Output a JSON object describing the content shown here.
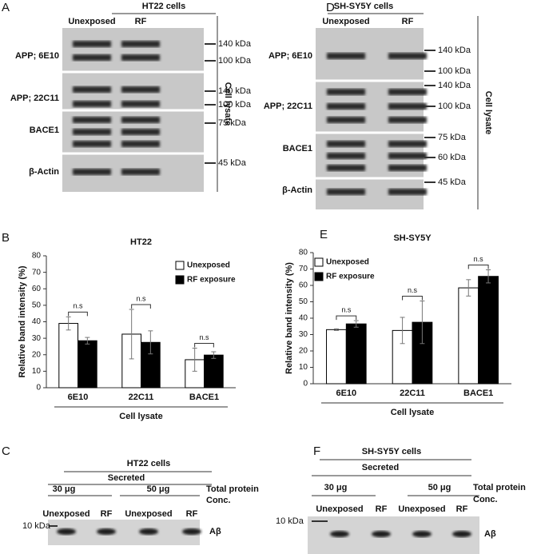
{
  "panel_labels": [
    "A",
    "B",
    "C",
    "D",
    "E",
    "F"
  ],
  "blots": [
    {
      "title": "HT22 cells",
      "lanes": [
        "Unexposed",
        "RF"
      ],
      "rows": [
        "APP; 6E10",
        "APP; 22C11",
        "BACE1",
        "β-Actin"
      ],
      "markers": [
        "140 kDa",
        "100 kDa",
        "140 kDa",
        "100 kDa",
        "75 kDa",
        "45 kDa"
      ],
      "side_label": "Cell lysate"
    },
    {
      "title": "SH-SY5Y cells",
      "lanes": [
        "Unexposed",
        "RF"
      ],
      "rows": [
        "APP; 6E10",
        "APP; 22C11",
        "BACE1",
        "β-Actin"
      ],
      "markers": [
        "140 kDa",
        "100 kDa",
        "140 kDa",
        "100 kDa",
        "75 kDa",
        "60 kDa",
        "45 kDa"
      ],
      "side_label": "Cell lysate"
    }
  ],
  "secreted": [
    {
      "title": "HT22 cells",
      "group": "Secreted",
      "amounts": [
        "30 μg",
        "50 μg"
      ],
      "conc_label": [
        "Total protein",
        "Conc."
      ],
      "lanes": [
        "Unexposed",
        "RF",
        "Unexposed",
        "RF"
      ],
      "marker": "10 kDa",
      "band": "Aβ"
    },
    {
      "title": "SH-SY5Y cells",
      "group": "Secreted",
      "amounts": [
        "30 μg",
        "50 μg"
      ],
      "conc_label": [
        "Total protein",
        "Conc."
      ],
      "lanes": [
        "Unexposed",
        "RF",
        "Unexposed",
        "RF"
      ],
      "marker": "10 kDa",
      "band": "Aβ"
    }
  ],
  "chart_data": [
    {
      "type": "bar",
      "title": "HT22",
      "y_label": "Relative band intensity (%)",
      "x_label": "Cell lysate",
      "categories": [
        "6E10",
        "22C11",
        "BACE1"
      ],
      "series": [
        {
          "name": "Unexposed",
          "color": "#ffffff",
          "values": [
            39,
            32.5,
            17
          ],
          "errors": [
            4,
            15,
            7
          ]
        },
        {
          "name": "RF exposure",
          "color": "#000000",
          "values": [
            28.5,
            27.5,
            19.8
          ],
          "errors": [
            2,
            7,
            2
          ]
        }
      ],
      "annotations": [
        "n.s",
        "n.s",
        "n.s"
      ],
      "ylim": [
        0,
        80
      ],
      "yticks": [
        0,
        10,
        20,
        30,
        40,
        50,
        60,
        70,
        80
      ],
      "legend": "upper right"
    },
    {
      "type": "bar",
      "title": "SH-SY5Y",
      "y_label": "Relative band intensity (%)",
      "x_label": "Cell lysate",
      "categories": [
        "6E10",
        "22C11",
        "BACE1"
      ],
      "series": [
        {
          "name": "Unexposed",
          "color": "#ffffff",
          "values": [
            33,
            32.5,
            58.5
          ],
          "errors": [
            0.5,
            8,
            5
          ]
        },
        {
          "name": "RF exposure",
          "color": "#000000",
          "values": [
            36.5,
            37.5,
            65.5
          ],
          "errors": [
            2,
            13,
            4
          ]
        }
      ],
      "annotations": [
        "n.s",
        "n.s",
        "n.s"
      ],
      "ylim": [
        0,
        80
      ],
      "yticks": [
        0,
        10,
        20,
        30,
        40,
        50,
        60,
        70,
        80
      ],
      "legend": "upper left"
    }
  ]
}
